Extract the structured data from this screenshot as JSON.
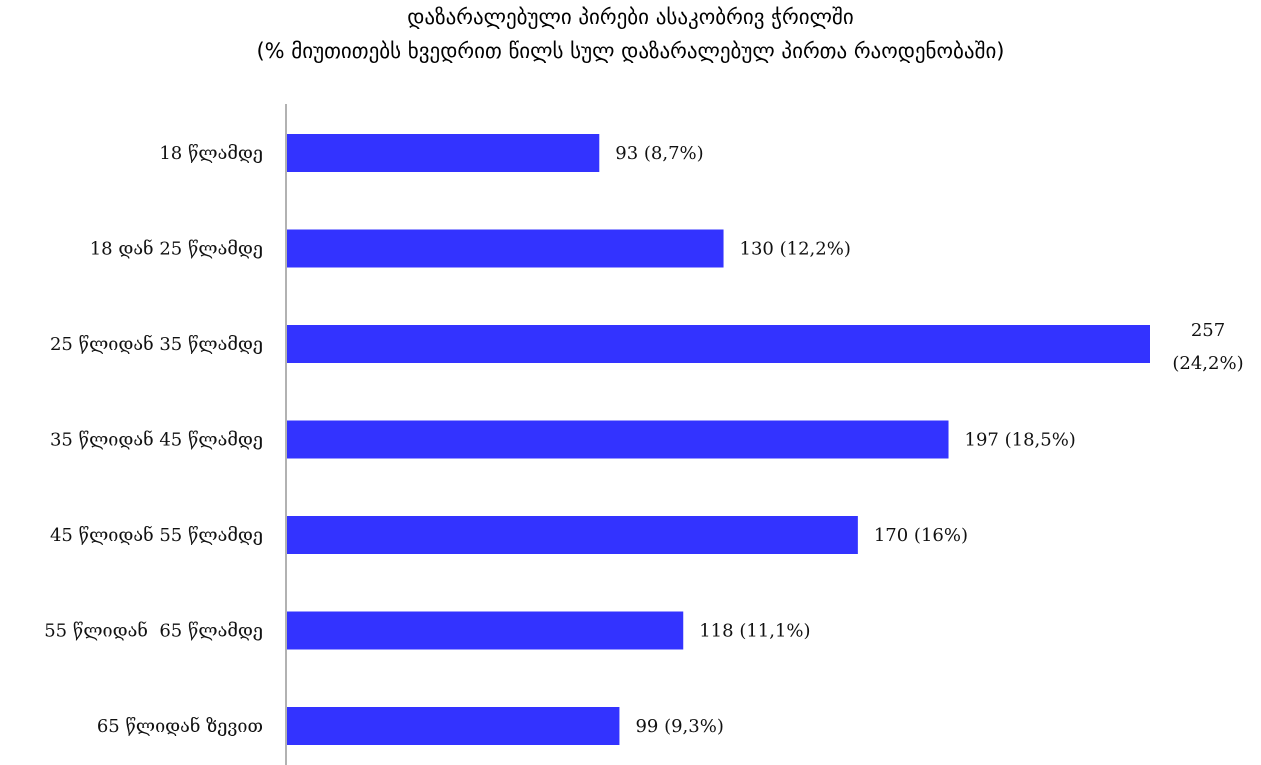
{
  "chart_data": {
    "type": "bar",
    "orientation": "horizontal",
    "title": "დაზარალებული პირები ასაკობრივ ჭრილში",
    "subtitle": "(% მიუთითებს ხვედრით წილს სულ დაზარალებულ პირთა რაოდენობაში)",
    "categories": [
      "18 წლამდე",
      "18 დან 25 წლამდე",
      "25 წლიდან 35 წლამდე",
      "35 წლიდან 45 წლამდე",
      "45 წლიდან 55 წლამდე",
      "55 წლიდან  65 წლამდე",
      "65 წლიდან ზევით"
    ],
    "values": [
      93,
      130,
      257,
      197,
      170,
      118,
      99
    ],
    "percents": [
      "8,7%",
      "12,2%",
      "24,2%",
      "18,5%",
      "16%",
      "11,1%",
      "9,3%"
    ],
    "data_labels": [
      "93 (8,7%)",
      "130 (12,2%)",
      "257 (24,2%)",
      "197 (18,5%)",
      "170 (16%)",
      "118 (11,1%)",
      "99 (9,3%)"
    ],
    "xlim": [
      0,
      257
    ],
    "grid": false,
    "legend": "none",
    "bar_color": "#3333ff"
  }
}
